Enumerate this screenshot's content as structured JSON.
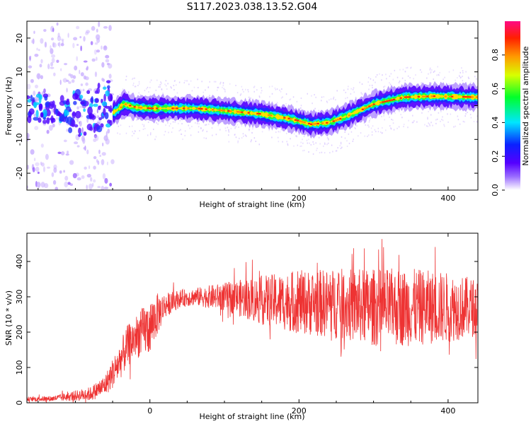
{
  "figure": {
    "title": "S117.2023.038.13.52.G04"
  },
  "chart_data": [
    {
      "type": "heatmap",
      "name": "spectrogram",
      "title": "",
      "xlabel": "Height of straight line (km)",
      "ylabel": "Frequency (Hz)",
      "xlim": [
        -165,
        440
      ],
      "ylim": [
        -25,
        25
      ],
      "xticks": [
        0,
        200,
        400
      ],
      "yticks": [
        -20,
        -10,
        0,
        10,
        20
      ],
      "xtick_labels": [
        "0",
        "200",
        "400"
      ],
      "ytick_labels": [
        "-20",
        "-10",
        "0",
        "10",
        "20"
      ],
      "ridge": {
        "x": [
          -60,
          -45,
          -35,
          -20,
          0,
          60,
          100,
          150,
          190,
          215,
          240,
          265,
          300,
          340,
          380,
          440
        ],
        "y": [
          -3,
          -1.5,
          0.5,
          -0.5,
          -0.8,
          -0.8,
          -1.5,
          -2.5,
          -4,
          -5.5,
          -5,
          -3,
          0.5,
          2.5,
          2.8,
          2.5
        ]
      },
      "colorbar": {
        "label": "Normalized spectral amplitude",
        "range": [
          0,
          1
        ],
        "ticks": [
          0.0,
          0.2,
          0.4,
          0.6,
          0.8
        ],
        "tick_labels": [
          "0.0",
          "0.2",
          "0.4",
          "0.6",
          "0.8"
        ]
      }
    },
    {
      "type": "line",
      "name": "snr",
      "title": "",
      "xlabel": "Height of straight line (km)",
      "ylabel": "SNR (10 * v/v)",
      "xlim": [
        -165,
        440
      ],
      "ylim": [
        0,
        480
      ],
      "xticks": [
        0,
        200,
        400
      ],
      "yticks": [
        0,
        100,
        200,
        300,
        400
      ],
      "xtick_labels": [
        "0",
        "200",
        "400"
      ],
      "ytick_labels": [
        "0",
        "100",
        "200",
        "300",
        "400"
      ],
      "color": "#ee3333",
      "series": [
        {
          "envelope_x": [
            -165,
            -130,
            -100,
            -80,
            -60,
            -45,
            -30,
            -20,
            -10,
            0,
            10,
            20,
            40,
            60,
            100,
            150,
            200,
            250,
            300,
            350,
            400,
            440
          ],
          "envelope_mean": [
            10,
            12,
            20,
            25,
            50,
            100,
            160,
            185,
            200,
            215,
            250,
            275,
            295,
            300,
            300,
            290,
            285,
            280,
            270,
            270,
            270,
            270
          ],
          "envelope_spread": [
            6,
            8,
            15,
            20,
            30,
            50,
            60,
            60,
            70,
            80,
            60,
            35,
            25,
            25,
            40,
            70,
            90,
            100,
            110,
            110,
            100,
            80
          ]
        }
      ]
    }
  ],
  "colors": {
    "axis": "#000000",
    "snr_line": "#ee3333",
    "background": "#ffffff"
  }
}
